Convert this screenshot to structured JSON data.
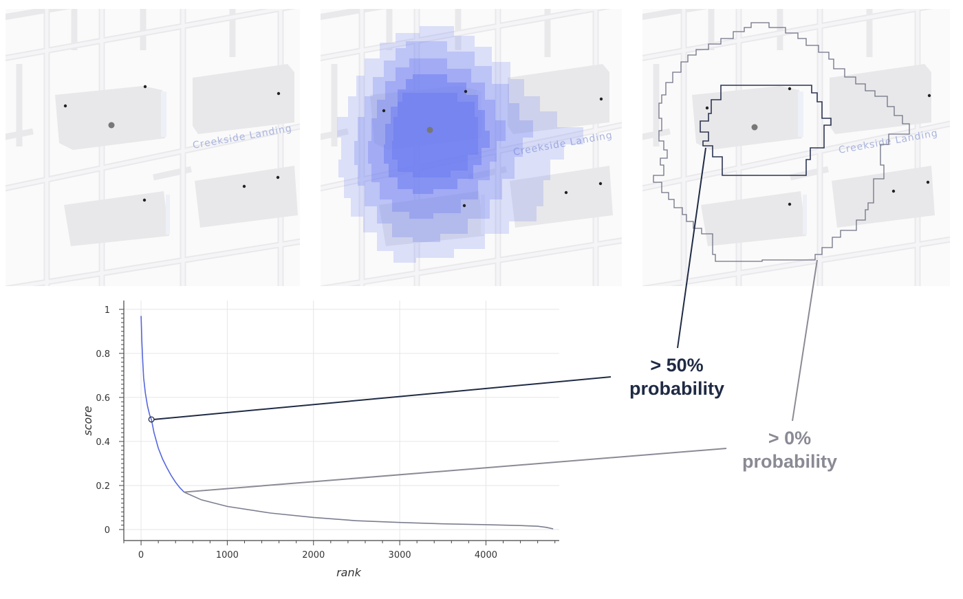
{
  "maps": {
    "street_name": "Creekside Landing"
  },
  "annotations": {
    "high_line1": "> 50%",
    "high_line2": "probability",
    "low_line1": "> 0%",
    "low_line2": "probability"
  },
  "colors": {
    "curve_high": "#5566dd",
    "curve_low": "#7a7d8e",
    "heat": "#6f7ff0",
    "contour_dark": "#2b3350",
    "contour_light": "#6f7285"
  },
  "chart_data": {
    "type": "line",
    "xlabel": "rank",
    "ylabel": "score",
    "xlim": [
      -200,
      4850
    ],
    "ylim": [
      -0.05,
      1.04
    ],
    "xticks": [
      0,
      1000,
      2000,
      3000,
      4000
    ],
    "yticks": [
      0,
      0.2,
      0.4,
      0.6,
      0.8,
      1
    ],
    "grid": true,
    "series": [
      {
        "segment": ">50% probability",
        "x": [
          0,
          10,
          20,
          30,
          50,
          75,
          100,
          120
        ],
        "y": [
          0.97,
          0.85,
          0.76,
          0.69,
          0.62,
          0.56,
          0.52,
          0.5
        ]
      },
      {
        "segment": ">0% probability",
        "x": [
          120,
          150,
          200,
          250,
          300,
          350,
          400,
          450,
          500
        ],
        "y": [
          0.5,
          0.44,
          0.37,
          0.32,
          0.28,
          0.245,
          0.215,
          0.19,
          0.17
        ]
      },
      {
        "segment": "0% probability",
        "x": [
          500,
          700,
          1000,
          1500,
          2000,
          2500,
          3000,
          3500,
          4000,
          4400,
          4600,
          4700,
          4780
        ],
        "y": [
          0.17,
          0.135,
          0.105,
          0.075,
          0.055,
          0.04,
          0.032,
          0.026,
          0.022,
          0.018,
          0.015,
          0.01,
          0.003
        ]
      }
    ],
    "marked_points": [
      {
        "x": 120,
        "y": 0.5
      },
      {
        "x": 500,
        "y": 0.17
      }
    ]
  }
}
